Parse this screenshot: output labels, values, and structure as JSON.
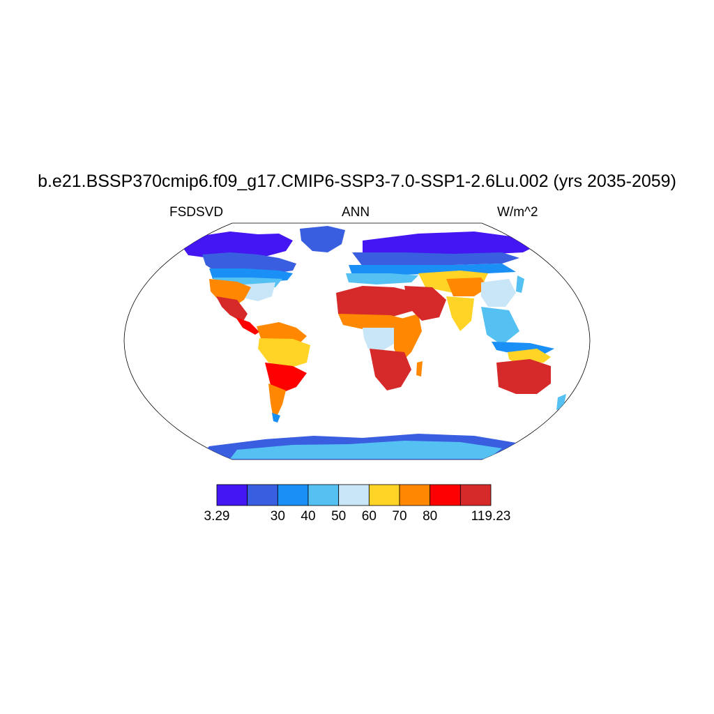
{
  "title": "b.e21.BSSP370cmip6.f09_g17.CMIP6-SSP3-7.0-SSP1-2.6Lu.002 (yrs 2035-2059)",
  "left_label": "FSDSVD",
  "center_label": "ANN",
  "right_label": "W/m^2",
  "chart_data": {
    "type": "heatmap",
    "projection": "Robinson (global)",
    "variable": "FSDSVD",
    "season": "ANN",
    "units": "W/m^2",
    "colorbar": {
      "bin_edges_labels": [
        "3.29",
        "",
        "30",
        "40",
        "50",
        "60",
        "70",
        "80",
        "",
        "119.23"
      ],
      "colors": [
        "#4316f2",
        "#3a5ee0",
        "#1a8ff5",
        "#55c0f2",
        "#c8e6f7",
        "#ffd426",
        "#ff8800",
        "#ff0000",
        "#d62a2a"
      ]
    },
    "regions": [
      {
        "name": "North America high latitudes",
        "range": "3.29-30"
      },
      {
        "name": "Eastern USA",
        "range": "40-60"
      },
      {
        "name": "Southwest USA / Mexico",
        "range": "70-119.23"
      },
      {
        "name": "Amazon basin",
        "range": "50-70"
      },
      {
        "name": "Southern South America",
        "range": "70-119.23"
      },
      {
        "name": "Sahara / Arabia",
        "range": "80-119.23"
      },
      {
        "name": "Central Africa",
        "range": "50-60"
      },
      {
        "name": "Southern Africa",
        "range": "80-119.23"
      },
      {
        "name": "Northern Eurasia",
        "range": "3.29-40"
      },
      {
        "name": "Tibet / Central Asia",
        "range": "60-80"
      },
      {
        "name": "Southeast Asia",
        "range": "50-60"
      },
      {
        "name": "Australia",
        "range": "80-119.23"
      },
      {
        "name": "Antarctica",
        "range": "30-50"
      },
      {
        "name": "Greenland",
        "range": "30-40"
      }
    ]
  }
}
